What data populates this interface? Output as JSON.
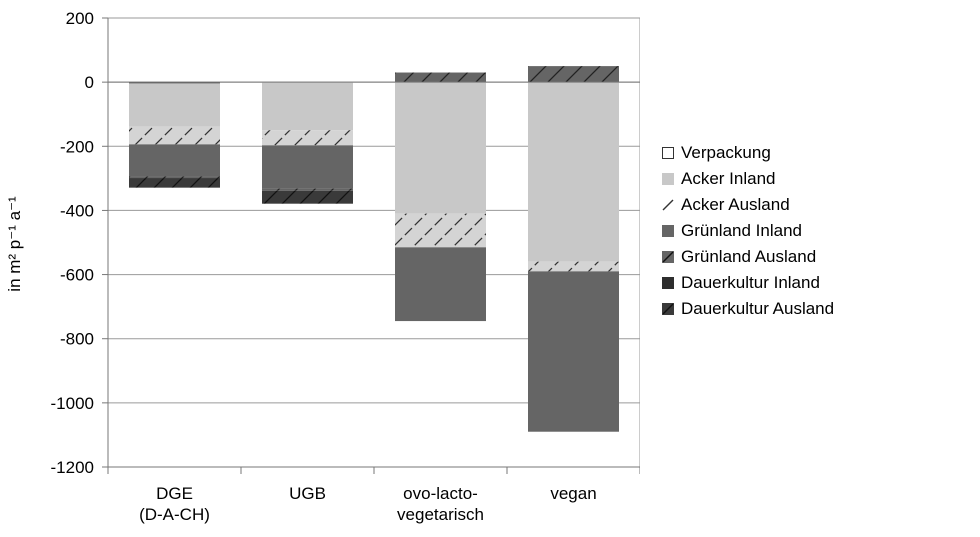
{
  "chart_data": {
    "type": "bar",
    "stacked": true,
    "categories": [
      "DGE\n(D-A-CH)",
      "UGB",
      "ovo-lacto-\nvegetarisch",
      "vegan"
    ],
    "ylabel": "in m² p⁻¹ a⁻¹",
    "ylim": [
      -1200,
      200
    ],
    "yticks": [
      200,
      0,
      -200,
      -400,
      -600,
      -800,
      -1000,
      -1200
    ],
    "grid": true,
    "legend_position": "right",
    "series": [
      {
        "name": "Verpackung",
        "color": "#ffffff",
        "pattern": "none",
        "values": [
          -4,
          0,
          0,
          0
        ]
      },
      {
        "name": "Acker Inland",
        "color": "#c8c8c8",
        "pattern": "none",
        "values": [
          -135,
          -150,
          -410,
          -560
        ]
      },
      {
        "name": "Acker Ausland",
        "color": "#d4d4d4",
        "pattern": "hatch",
        "values": [
          -55,
          -47,
          -105,
          -30
        ]
      },
      {
        "name": "Grünland Inland",
        "color": "#656565",
        "pattern": "none",
        "values": [
          -100,
          -135,
          -230,
          -500
        ]
      },
      {
        "name": "Grünland Ausland",
        "color": "#656565",
        "pattern": "hatch",
        "values": [
          -5,
          -7,
          30,
          50
        ]
      },
      {
        "name": "Dauerkultur Inland",
        "color": "#2e2e2e",
        "pattern": "none",
        "values": [
          0,
          0,
          0,
          0
        ]
      },
      {
        "name": "Dauerkultur Ausland",
        "color": "#3a3a3a",
        "pattern": "hatch",
        "values": [
          -30,
          -40,
          0,
          0
        ]
      }
    ]
  }
}
